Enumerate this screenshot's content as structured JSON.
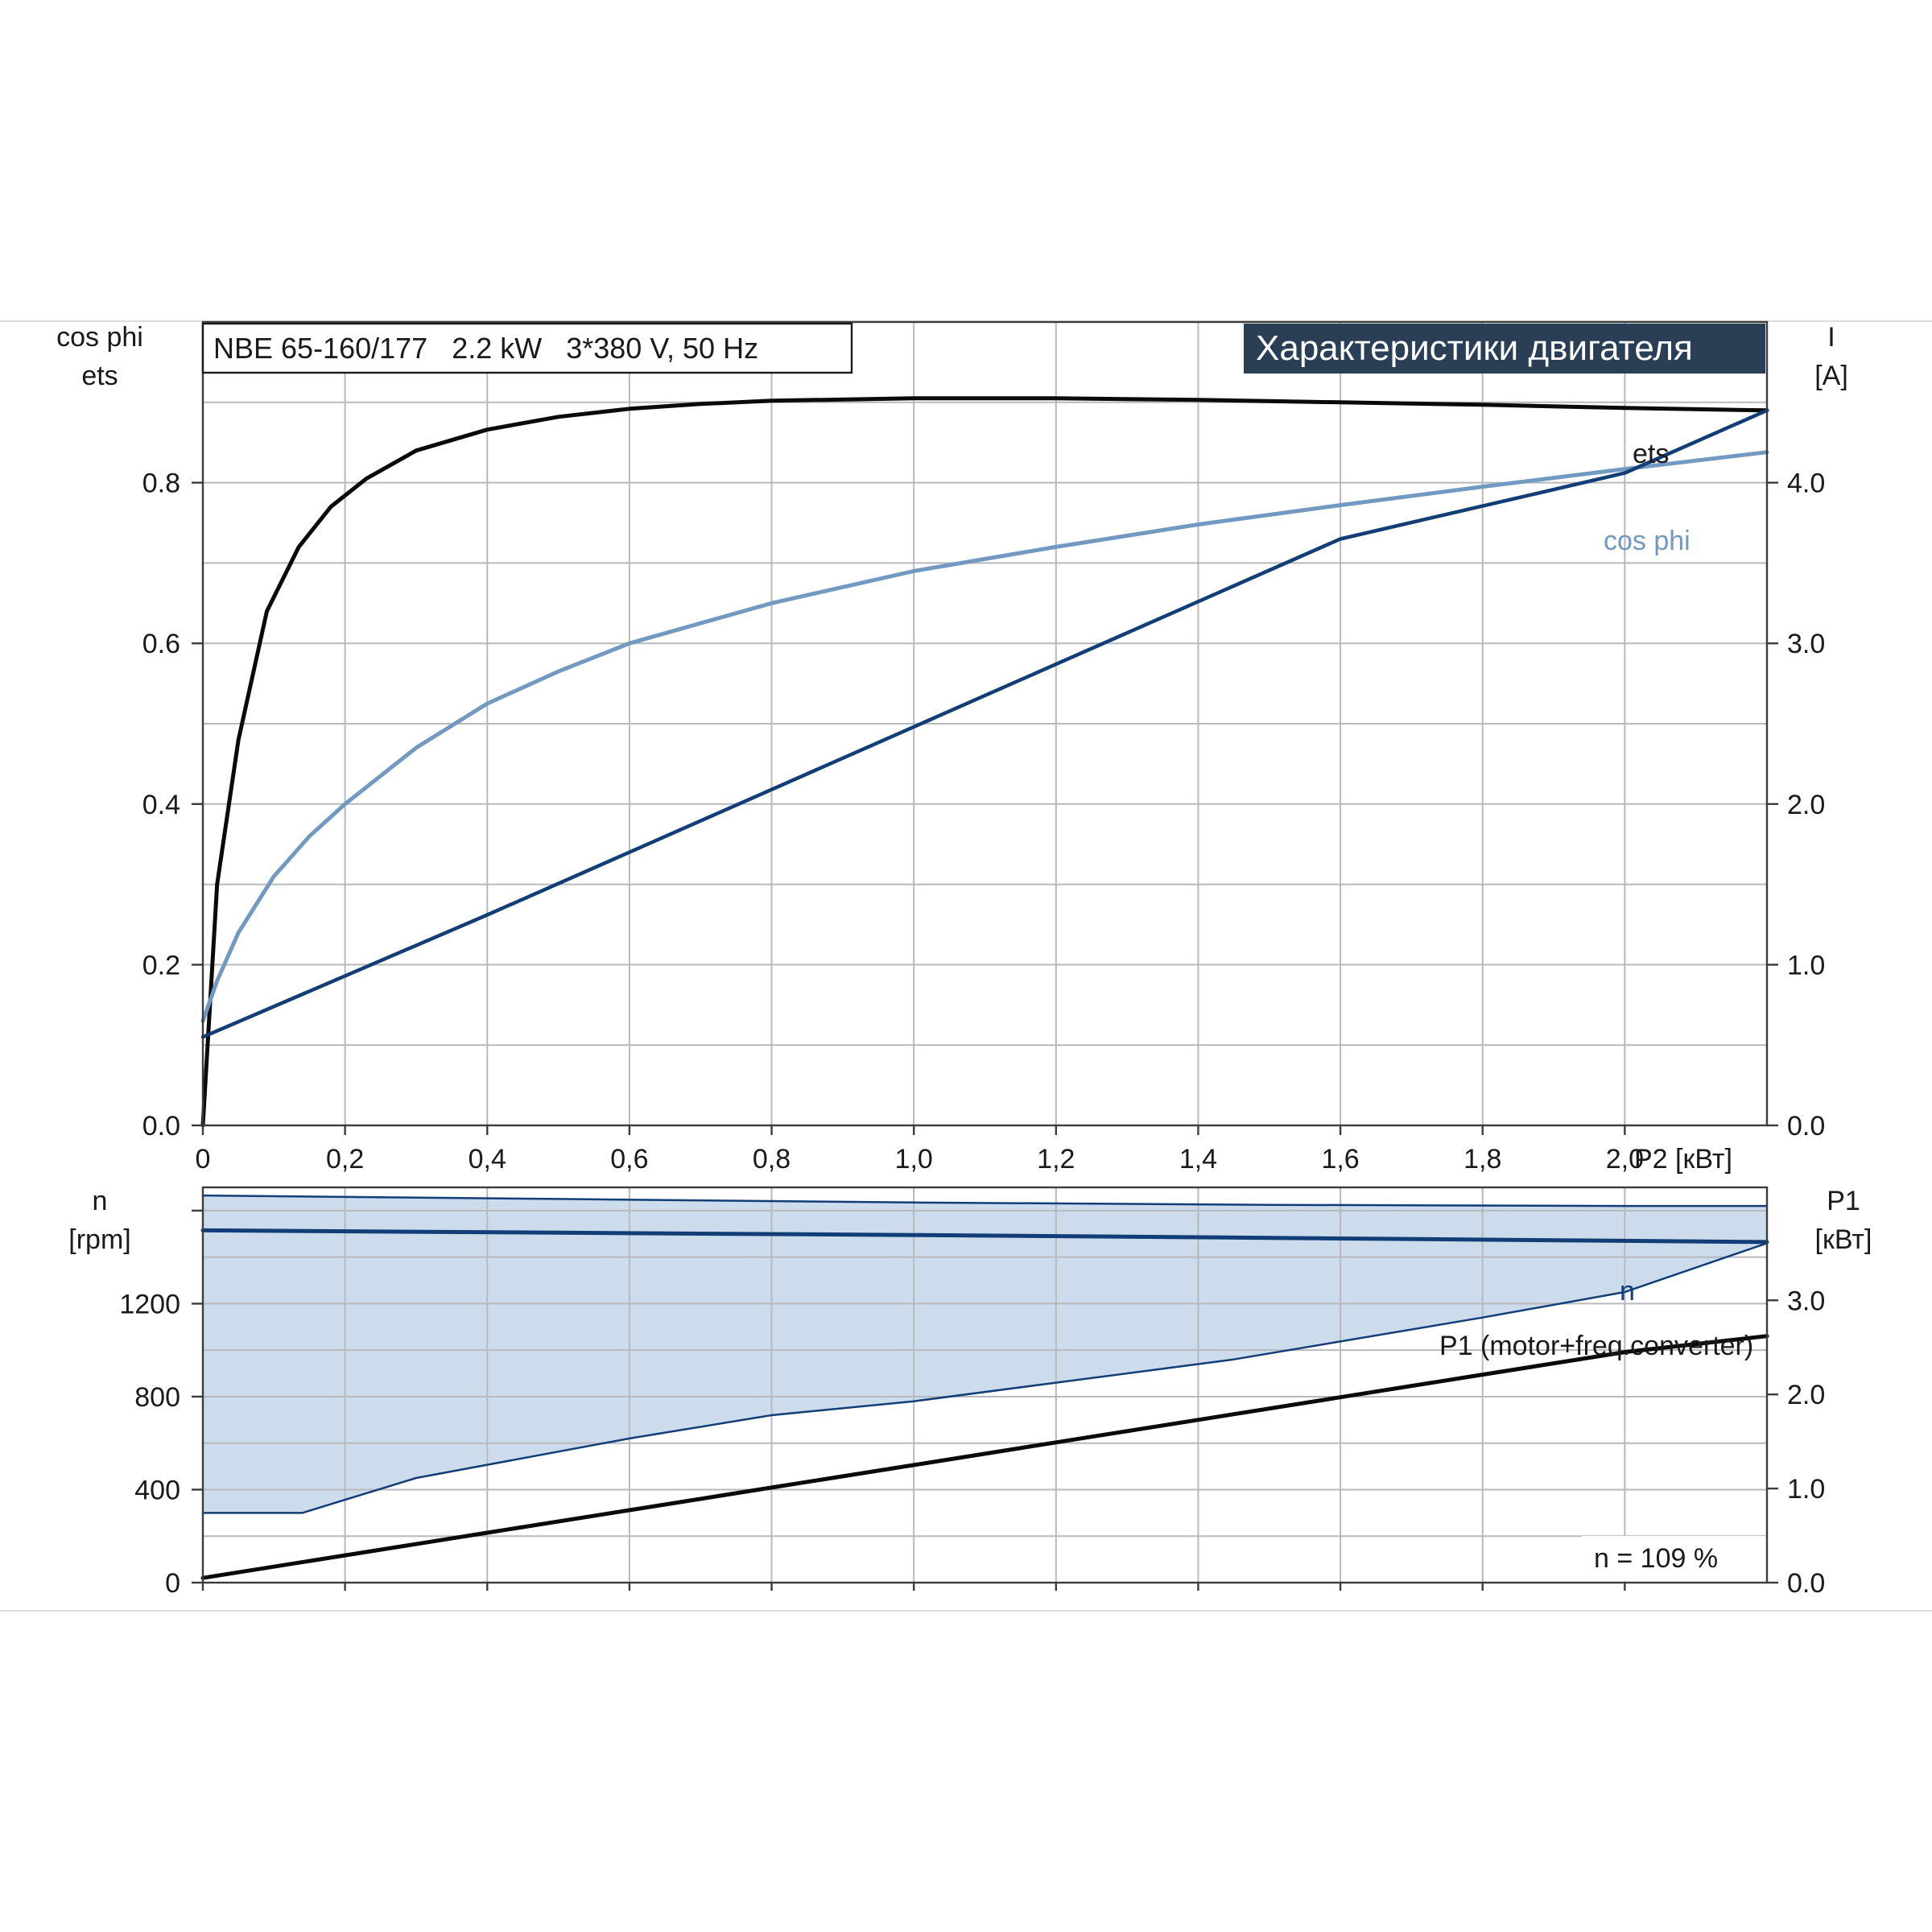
{
  "colors": {
    "black_curve": "#0a0a0a",
    "light_blue_curve": "#7199c1",
    "dark_blue_curve": "#123e78",
    "fill_band": "#cddcec",
    "title_bg": "#2a3e55",
    "grid": "#b7b9bc"
  },
  "header": {
    "model_label": "NBE 65-160/177   2.2 kW   3*380 V, 50 Hz",
    "title": "Характеристики двигателя"
  },
  "chart_data": [
    {
      "type": "line",
      "title": "Характеристики двигателя",
      "xlabel": "P2 [кВт]",
      "xlim": [
        0,
        2.2
      ],
      "x_ticks": [
        "0",
        "0,2",
        "0,4",
        "0,6",
        "0,8",
        "1,0",
        "1,2",
        "1,4",
        "1,6",
        "1,8",
        "2,0"
      ],
      "left_axis": {
        "label_line1": "cos phi",
        "label_line2": "ets",
        "ylim": [
          0,
          1.0
        ],
        "ticks": [
          "0.0",
          "0.2",
          "0.4",
          "0.6",
          "0.8"
        ]
      },
      "right_axis": {
        "label_line1": "I",
        "label_line2": "[A]",
        "ylim": [
          0,
          5.0
        ],
        "ticks": [
          "0.0",
          "1.0",
          "2.0",
          "3.0",
          "4.0"
        ]
      },
      "grid": true,
      "series": [
        {
          "name": "ets",
          "axis": "left",
          "color": "#0a0a0a",
          "x": [
            0,
            0.02,
            0.05,
            0.09,
            0.135,
            0.18,
            0.23,
            0.3,
            0.4,
            0.5,
            0.6,
            0.7,
            0.8,
            1.0,
            1.2,
            1.4,
            1.6,
            1.8,
            2.0,
            2.2
          ],
          "y": [
            0.0,
            0.3,
            0.48,
            0.64,
            0.72,
            0.77,
            0.805,
            0.84,
            0.866,
            0.882,
            0.892,
            0.898,
            0.902,
            0.905,
            0.905,
            0.903,
            0.9,
            0.897,
            0.893,
            0.89
          ]
        },
        {
          "name": "cos phi",
          "axis": "left",
          "color": "#7199c1",
          "x": [
            0,
            0.02,
            0.05,
            0.1,
            0.15,
            0.2,
            0.3,
            0.4,
            0.5,
            0.6,
            0.8,
            1.0,
            1.2,
            1.4,
            1.6,
            1.8,
            2.0,
            2.2
          ],
          "y": [
            0.13,
            0.18,
            0.24,
            0.31,
            0.36,
            0.4,
            0.47,
            0.525,
            0.565,
            0.6,
            0.65,
            0.69,
            0.72,
            0.748,
            0.772,
            0.795,
            0.817,
            0.838
          ]
        },
        {
          "name": "I",
          "axis": "right",
          "color": "#123e78",
          "x": [
            0,
            0.4,
            0.8,
            1.2,
            1.6,
            2.0,
            2.2
          ],
          "y": [
            0.55,
            1.31,
            2.09,
            2.87,
            3.65,
            4.06,
            4.45
          ]
        }
      ],
      "annotations": [
        "ets",
        "cos phi"
      ]
    },
    {
      "type": "area",
      "xlabel": "P2 [кВт]",
      "xlim": [
        0,
        2.2
      ],
      "left_axis": {
        "label_line1": "n",
        "label_line2": "[rpm]",
        "ylim": [
          0,
          1700
        ],
        "ticks": [
          "0",
          "400",
          "800",
          "1200"
        ]
      },
      "right_axis": {
        "label_line1": "P1",
        "label_line2": "[кВт]",
        "ylim": [
          0,
          4.2
        ],
        "ticks": [
          "0.0",
          "1.0",
          "2.0",
          "3.0"
        ]
      },
      "grid": true,
      "series": [
        {
          "name": "n",
          "axis": "left",
          "color": "#123e78",
          "x": [
            0,
            0.5,
            1.0,
            1.5,
            2.0,
            2.2
          ],
          "y": [
            1515,
            1505,
            1495,
            1483,
            1470,
            1465
          ]
        },
        {
          "name": "range upper",
          "axis": "left",
          "color": "#123e78",
          "x": [
            0,
            0.5,
            1.0,
            1.5,
            2.0,
            2.2
          ],
          "y": [
            1665,
            1650,
            1635,
            1625,
            1620,
            1620
          ]
        },
        {
          "name": "range lower",
          "axis": "left",
          "color": "#123e78",
          "x": [
            0,
            0.14,
            0.3,
            0.6,
            0.8,
            1.0,
            1.2,
            1.4,
            1.45,
            1.8,
            2.0,
            2.2
          ],
          "y": [
            300,
            300,
            450,
            620,
            720,
            780,
            860,
            940,
            960,
            1140,
            1250,
            1460
          ]
        },
        {
          "name": "P1 (motor+freq.converter)",
          "axis": "right",
          "color": "#0a0a0a",
          "x": [
            0,
            0.2,
            0.4,
            0.6,
            0.8,
            1.0,
            1.2,
            1.4,
            1.6,
            1.8,
            2.0,
            2.2
          ],
          "y": [
            0.05,
            0.29,
            0.53,
            0.77,
            1.01,
            1.25,
            1.49,
            1.73,
            1.97,
            2.21,
            2.45,
            2.62
          ]
        }
      ],
      "annotations": [
        "n",
        "P1 (motor+freq.converter)",
        "n = 109 %"
      ]
    }
  ]
}
